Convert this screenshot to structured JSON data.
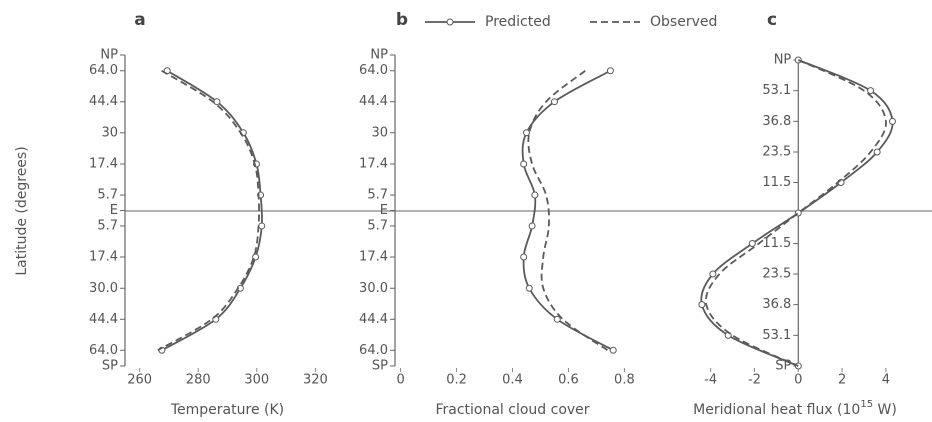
{
  "chart_data": [
    {
      "type": "line",
      "label": "a",
      "ylabel": "Latitude (degrees)",
      "xlabel": "Temperature (K)",
      "yscale": "sine",
      "lat": [
        64.0,
        44.4,
        30.0,
        17.4,
        5.7,
        -5.7,
        -17.4,
        -30.0,
        -44.4,
        -64.0
      ],
      "series": [
        {
          "name": "Predicted",
          "color": "#5a5a5a",
          "dash": false,
          "markers": true,
          "values": [
            269.4,
            286.4,
            295.4,
            299.9,
            301.3,
            301.7,
            299.6,
            294.4,
            286.0,
            267.6
          ]
        },
        {
          "name": "Observed",
          "color": "#5a5a5a",
          "dash": true,
          "markers": false,
          "values": [
            267.5,
            285.0,
            294.5,
            299.3,
            300.6,
            300.6,
            299.0,
            293.6,
            284.6,
            266.2
          ]
        }
      ],
      "xlim": [
        255,
        325
      ],
      "xticks": [
        260,
        280,
        300,
        320
      ],
      "ylim": [
        -90,
        90
      ],
      "yticks": [
        {
          "value": 90,
          "label": "NP"
        },
        {
          "value": 64.0,
          "label": "64.0"
        },
        44.4,
        30.0,
        17.4,
        5.7,
        {
          "value": 0,
          "label": "E"
        },
        {
          "value": -5.7,
          "label": "5.7"
        },
        {
          "value": -17.4,
          "label": "17.4"
        },
        {
          "value": -30.0,
          "label": "30.0"
        },
        {
          "value": -44.4,
          "label": "44.4"
        },
        {
          "value": -64.0,
          "label": "64.0"
        },
        {
          "value": -90,
          "label": "SP"
        }
      ]
    },
    {
      "type": "line",
      "label": "b",
      "xlabel": "Fractional cloud cover",
      "yscale": "sine",
      "legend": "top",
      "lat": [
        64.0,
        44.4,
        30.0,
        17.4,
        5.7,
        -5.7,
        -17.4,
        -30.0,
        -44.4,
        -64.0
      ],
      "series": [
        {
          "name": "Predicted",
          "color": "#5a5a5a",
          "dash": false,
          "markers": true,
          "values": [
            0.75,
            0.55,
            0.45,
            0.44,
            0.48,
            0.47,
            0.44,
            0.46,
            0.56,
            0.76
          ]
        },
        {
          "name": "Observed",
          "color": "#5a5a5a",
          "dash": true,
          "markers": false,
          "values": [
            0.66,
            0.52,
            0.46,
            0.47,
            0.52,
            0.53,
            0.51,
            0.51,
            0.58,
            0.74
          ]
        }
      ],
      "xlim": [
        -0.02,
        0.82
      ],
      "xticks": [
        0,
        0.2,
        0.4,
        0.6,
        0.8
      ],
      "ylim": [
        -90,
        90
      ],
      "yticks": [
        {
          "value": 90,
          "label": "NP"
        },
        {
          "value": 64.0,
          "label": "64.0"
        },
        44.4,
        30.0,
        17.4,
        5.7,
        {
          "value": 0,
          "label": "E"
        },
        {
          "value": -5.7,
          "label": "5.7"
        },
        {
          "value": -17.4,
          "label": "17.4"
        },
        {
          "value": -30.0,
          "label": "30.0"
        },
        {
          "value": -44.4,
          "label": "44.4"
        },
        {
          "value": -64.0,
          "label": "64.0"
        },
        {
          "value": -90,
          "label": "SP"
        }
      ]
    },
    {
      "type": "line",
      "label": "c",
      "xlabel": "Meridional heat flux (10",
      "xlabel_exponent": "15",
      "xlabel_suffix": " W)",
      "yscale": "sine",
      "lat": [
        90,
        53.1,
        36.8,
        23.5,
        11.5,
        0,
        -11.5,
        -23.5,
        -36.8,
        -53.1,
        -90
      ],
      "series": [
        {
          "name": "Predicted",
          "color": "#5a5a5a",
          "dash": false,
          "markers": true,
          "values": [
            0,
            3.3,
            4.3,
            3.6,
            1.95,
            0,
            -2.1,
            -3.9,
            -4.4,
            -3.2,
            0
          ]
        },
        {
          "name": "Observed",
          "color": "#5a5a5a",
          "dash": true,
          "markers": false,
          "values": [
            0,
            3.0,
            4.0,
            3.3,
            1.8,
            0,
            -1.8,
            -3.6,
            -4.2,
            -3.0,
            0
          ]
        }
      ],
      "xlim": [
        -5.4,
        5.1
      ],
      "xticks": [
        -4,
        -2,
        0,
        2,
        4
      ],
      "ylim": [
        -90,
        90
      ],
      "yticks": [
        {
          "value": 90,
          "label": "NP"
        },
        53.1,
        36.8,
        23.5,
        11.5,
        {
          "value": -11.5,
          "label": "11.5"
        },
        {
          "value": -23.5,
          "label": "23.5"
        },
        {
          "value": -36.8,
          "label": "36.8"
        },
        {
          "value": -53.1,
          "label": "53.1"
        },
        {
          "value": -90,
          "label": "SP"
        }
      ]
    }
  ]
}
